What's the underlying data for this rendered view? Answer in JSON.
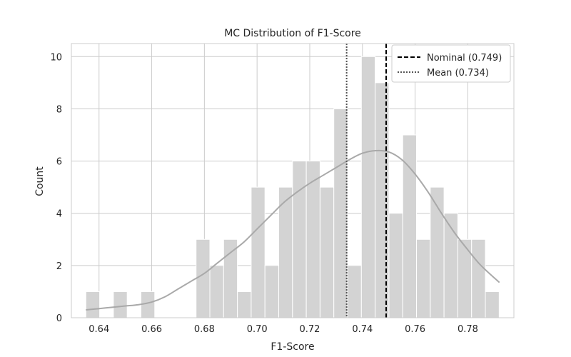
{
  "chart_data": {
    "type": "bar",
    "title": "MC Distribution of F1-Score",
    "xlabel": "F1-Score",
    "ylabel": "Count",
    "xlim": [
      0.6295,
      0.7975
    ],
    "ylim": [
      0,
      10.5
    ],
    "xticks": [
      "0.64",
      "0.66",
      "0.68",
      "0.70",
      "0.72",
      "0.74",
      "0.76",
      "0.78"
    ],
    "yticks": [
      "0",
      "2",
      "4",
      "6",
      "8",
      "10"
    ],
    "bin_start": 0.635,
    "bin_width": 0.00523,
    "counts": [
      1,
      0,
      1,
      0,
      1,
      0,
      0,
      0,
      3,
      2,
      3,
      1,
      5,
      2,
      5,
      6,
      6,
      5,
      8,
      2,
      10,
      9,
      4,
      7,
      3,
      5,
      4,
      3,
      3,
      1
    ],
    "kde_curve": {
      "x": [
        0.635,
        0.64,
        0.645,
        0.65,
        0.655,
        0.66,
        0.665,
        0.67,
        0.675,
        0.68,
        0.685,
        0.69,
        0.695,
        0.7,
        0.705,
        0.71,
        0.715,
        0.72,
        0.725,
        0.73,
        0.735,
        0.74,
        0.745,
        0.75,
        0.755,
        0.76,
        0.765,
        0.77,
        0.775,
        0.78,
        0.785,
        0.792
      ],
      "y": [
        0.3,
        0.35,
        0.4,
        0.45,
        0.5,
        0.6,
        0.8,
        1.1,
        1.4,
        1.7,
        2.1,
        2.5,
        2.9,
        3.4,
        3.9,
        4.4,
        4.8,
        5.15,
        5.45,
        5.75,
        6.05,
        6.3,
        6.4,
        6.35,
        6.05,
        5.5,
        4.8,
        4.0,
        3.25,
        2.6,
        2.0,
        1.35
      ]
    },
    "reference_lines": [
      {
        "name": "Nominal (0.749)",
        "x": 0.749,
        "style": "dashed",
        "color": "#000000"
      },
      {
        "name": "Mean (0.734)",
        "x": 0.734,
        "style": "dotted",
        "color": "#555555"
      }
    ],
    "legend_position": "top-right",
    "grid": true,
    "colors": {
      "bars": "#d3d3d3",
      "kde": "#a9a9a9",
      "grid": "#cccccc"
    }
  }
}
